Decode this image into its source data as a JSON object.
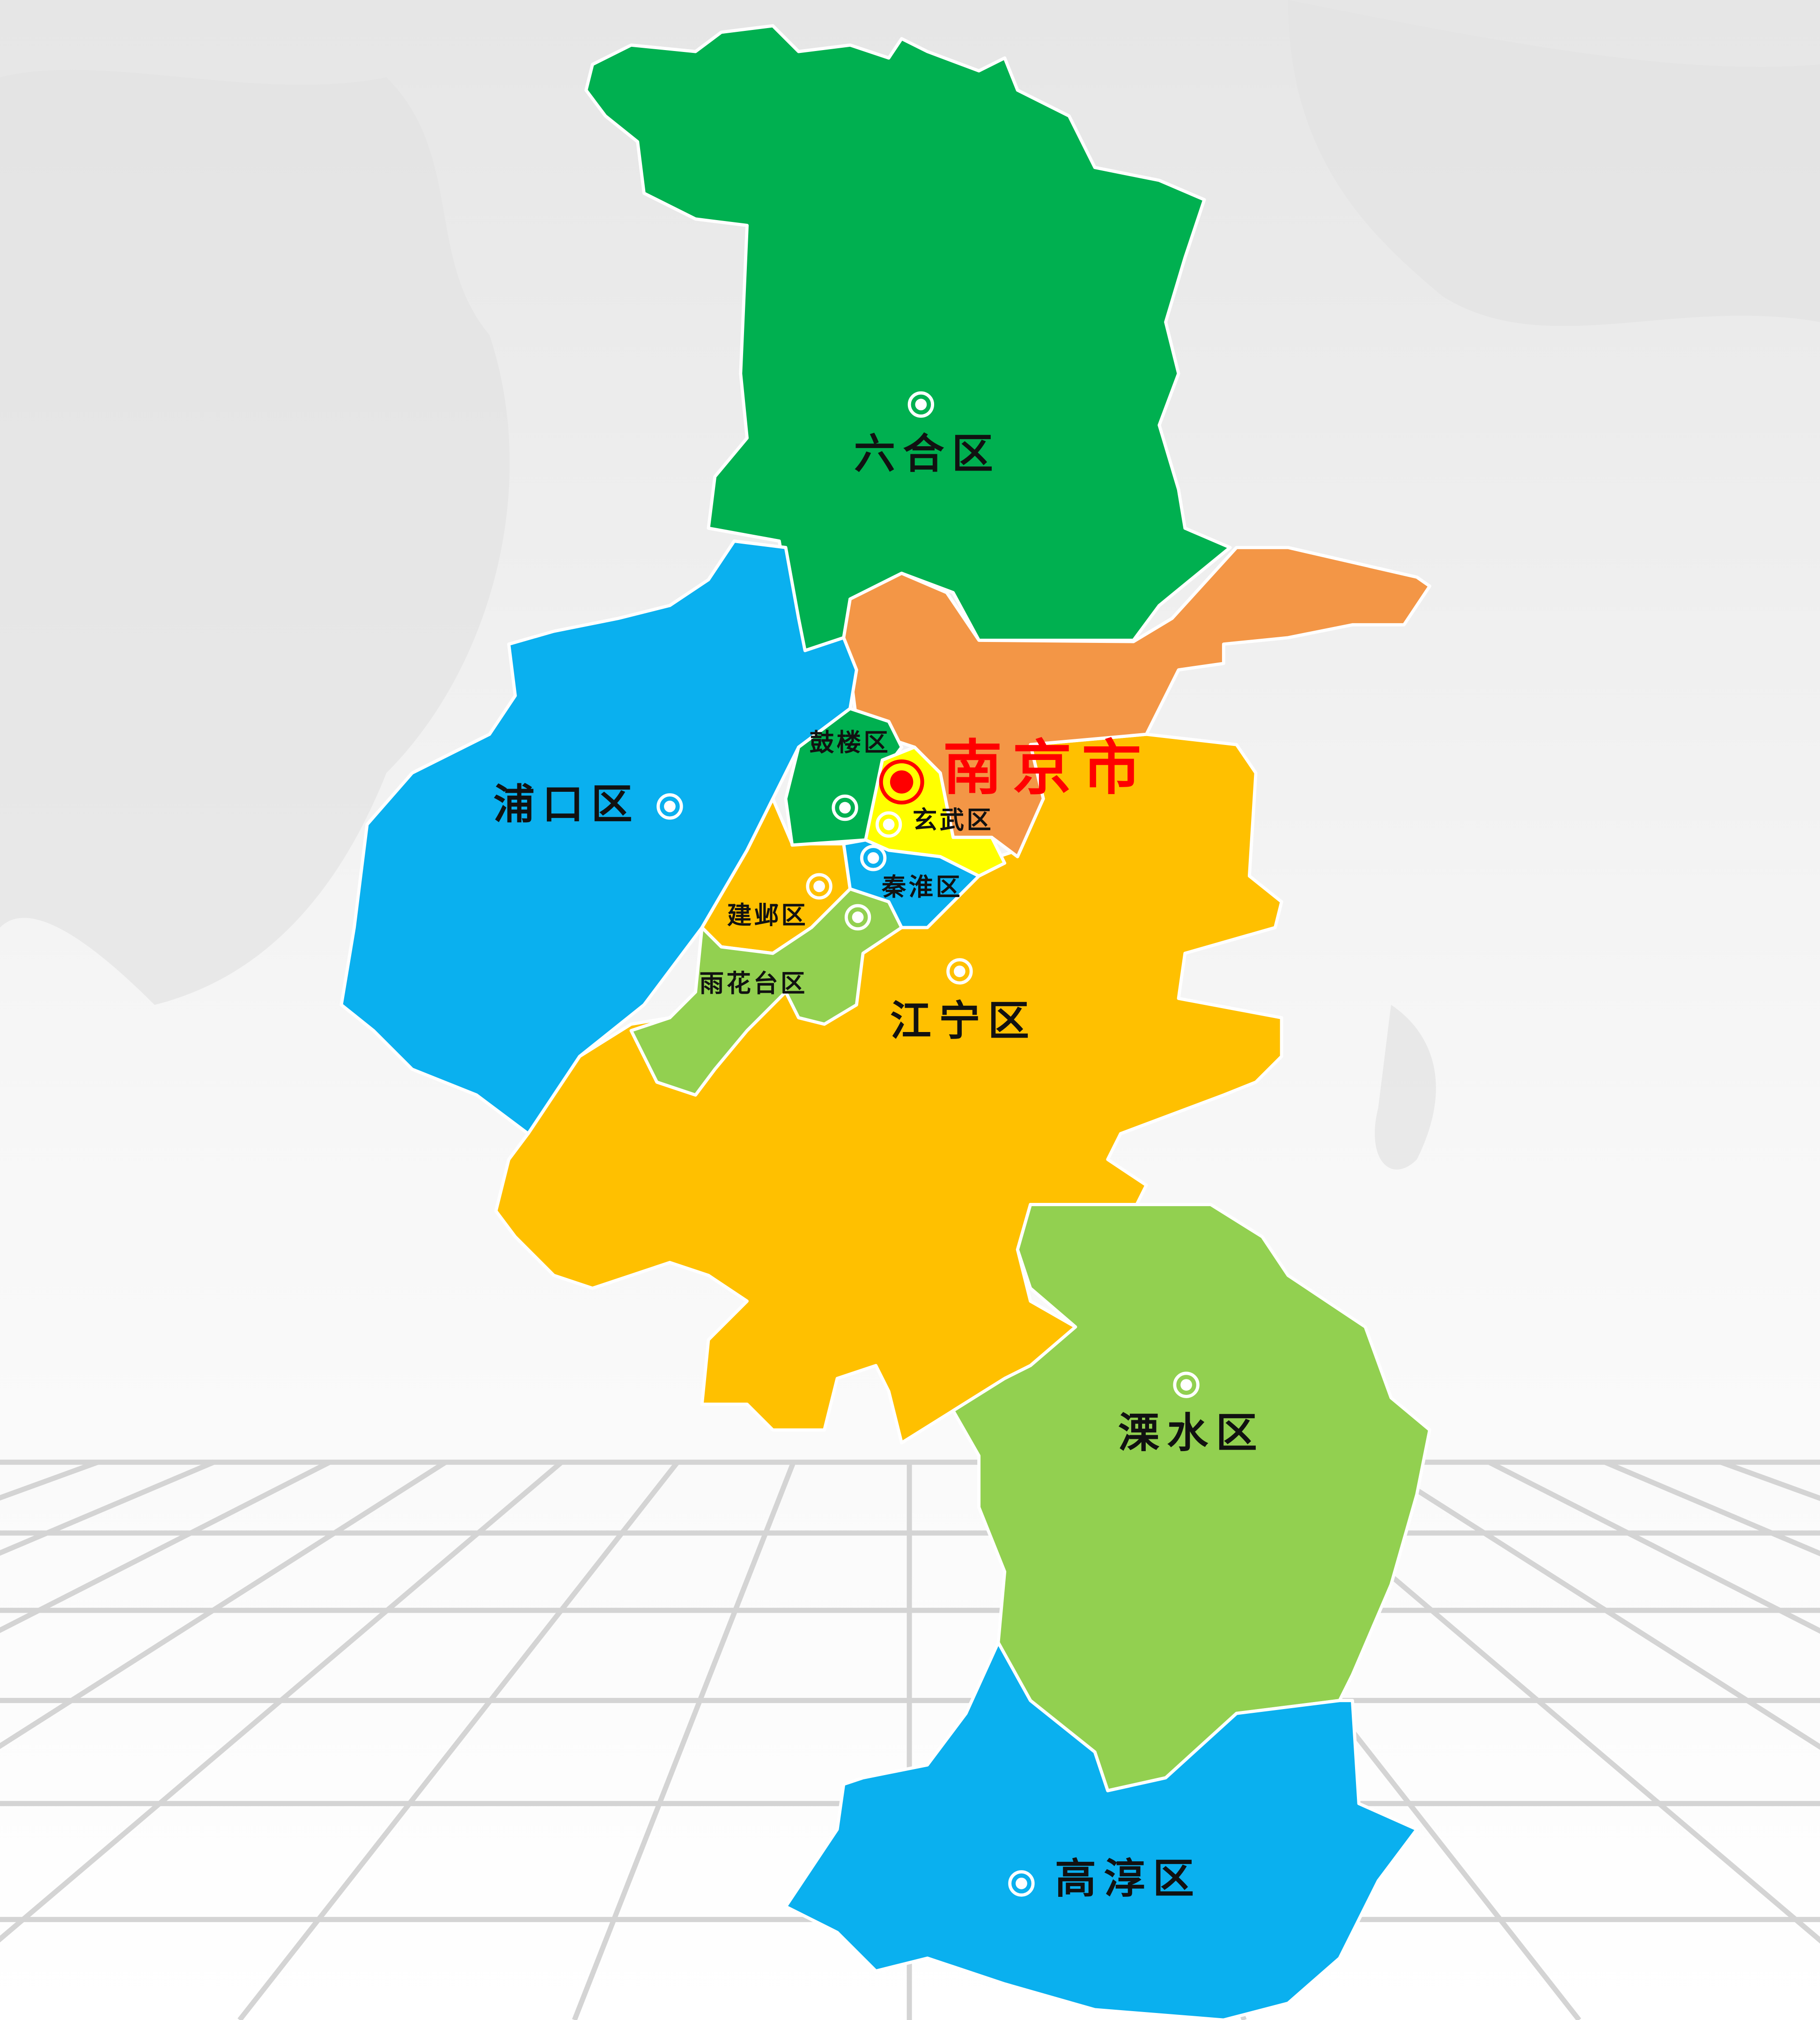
{
  "map": {
    "city": {
      "name": "南京市",
      "color": "#ff0000"
    },
    "districts": [
      {
        "id": "liuhe",
        "name": "六合区",
        "color": "#00b050"
      },
      {
        "id": "qixia",
        "name": "",
        "color": "#f39646"
      },
      {
        "id": "pukou",
        "name": "浦口区",
        "color": "#0ab0ef"
      },
      {
        "id": "jiangning",
        "name": "江宁区",
        "color": "#ffc000"
      },
      {
        "id": "lishui",
        "name": "溧水区",
        "color": "#92d050"
      },
      {
        "id": "gaochun",
        "name": "高淳区",
        "color": "#0ab0ef"
      },
      {
        "id": "gulou",
        "name": "鼓楼区",
        "color": "#00b050"
      },
      {
        "id": "xuanwu",
        "name": "玄武区",
        "color": "#ffff00"
      },
      {
        "id": "qinhuai",
        "name": "秦淮区",
        "color": "#0ab0ef"
      },
      {
        "id": "jianye",
        "name": "建邺区",
        "color": "#ffc000"
      },
      {
        "id": "yuhuatai",
        "name": "雨花台区",
        "color": "#92d050"
      }
    ],
    "marker_icon": "district-seat-marker",
    "capital_icon": "capital-marker"
  }
}
